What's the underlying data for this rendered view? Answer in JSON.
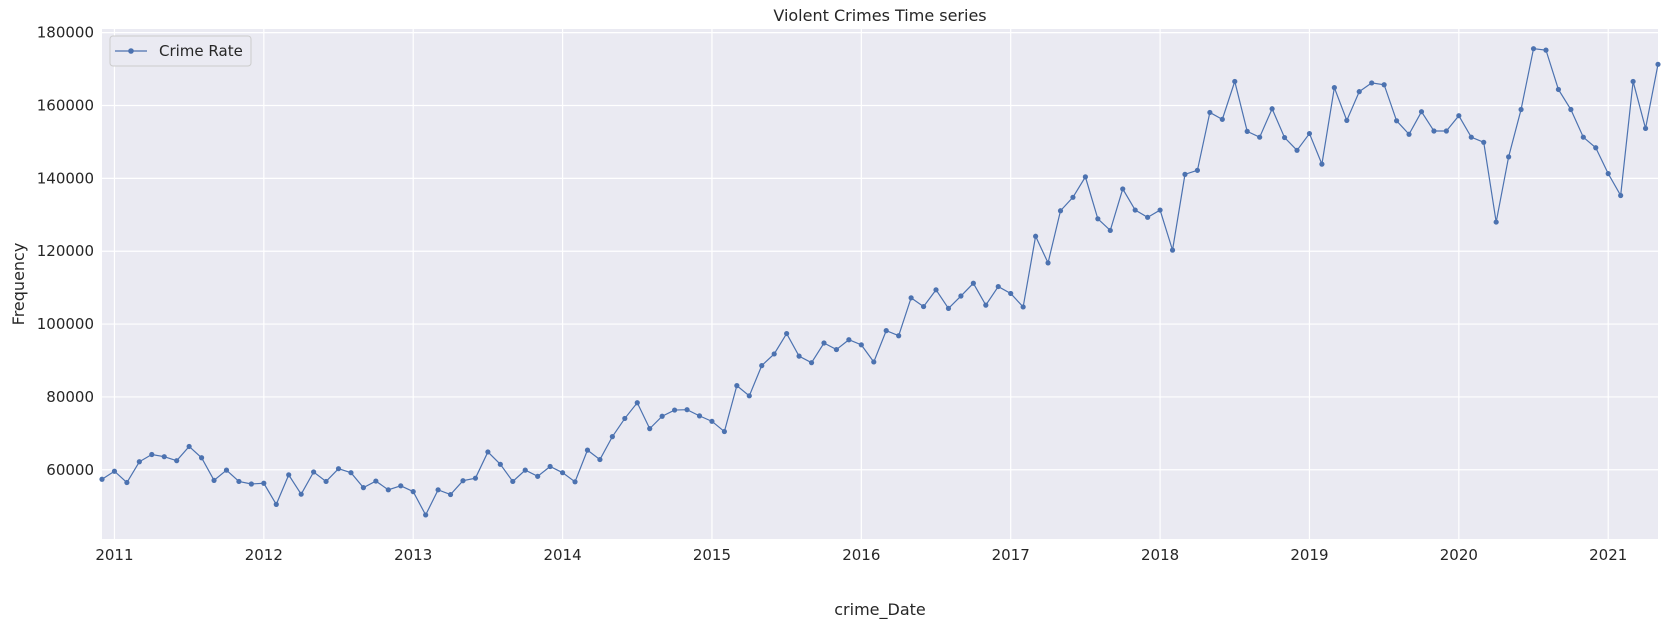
{
  "chart_data": {
    "type": "line",
    "title": "Violent Crimes Time series",
    "xlabel": "crime_Date",
    "ylabel": "Frequency",
    "xlim": [
      "2010-12-01",
      "2021-05-01"
    ],
    "ylim": [
      41000,
      181000
    ],
    "grid": true,
    "legend_position": "top-left",
    "x_tick_labels": [
      "2011",
      "2012",
      "2013",
      "2014",
      "2015",
      "2016",
      "2017",
      "2018",
      "2019",
      "2020",
      "2021"
    ],
    "y_tick_values": [
      60000,
      80000,
      100000,
      120000,
      140000,
      160000,
      180000
    ],
    "y_tick_labels": [
      "60000",
      "80000",
      "100000",
      "120000",
      "140000",
      "160000",
      "180000"
    ],
    "colors": {
      "background": "#EAEAF2",
      "grid": "#FFFFFF",
      "series": "#4C72B0"
    },
    "series": [
      {
        "name": "Crime Rate",
        "start": "2010-12",
        "values": [
          57400,
          59600,
          56500,
          62200,
          64200,
          63600,
          62500,
          66400,
          63300,
          57100,
          59900,
          56800,
          56100,
          56300,
          50500,
          58600,
          53300,
          59400,
          56800,
          60300,
          59200,
          55100,
          56900,
          54500,
          55600,
          54000,
          47600,
          54500,
          53200,
          57000,
          57700,
          64900,
          61500,
          56800,
          59900,
          58200,
          60900,
          59200,
          56700,
          65400,
          62800,
          69100,
          74100,
          78400,
          71300,
          74700,
          76400,
          76500,
          74800,
          73300,
          70500,
          83100,
          80300,
          88600,
          91800,
          97400,
          91200,
          89400,
          94800,
          93000,
          95700,
          94300,
          89600,
          98200,
          96800,
          107200,
          104800,
          109400,
          104300,
          107700,
          111200,
          105200,
          110300,
          108400,
          104700,
          124100,
          116800,
          131100,
          134800,
          140400,
          128900,
          125700,
          137100,
          131300,
          129300,
          131300,
          120300,
          141100,
          142200,
          158100,
          156200,
          166600,
          152900,
          151300,
          159100,
          151200,
          147700,
          152300,
          143900,
          164900,
          155900,
          163800,
          166200,
          165700,
          155800,
          152100,
          158300,
          153000,
          153000,
          157200,
          151300,
          149900,
          128000,
          145900,
          158900,
          175600,
          175200,
          164400,
          158900,
          151300,
          148400,
          141300,
          135300,
          166600,
          153700,
          171300
        ]
      }
    ]
  }
}
